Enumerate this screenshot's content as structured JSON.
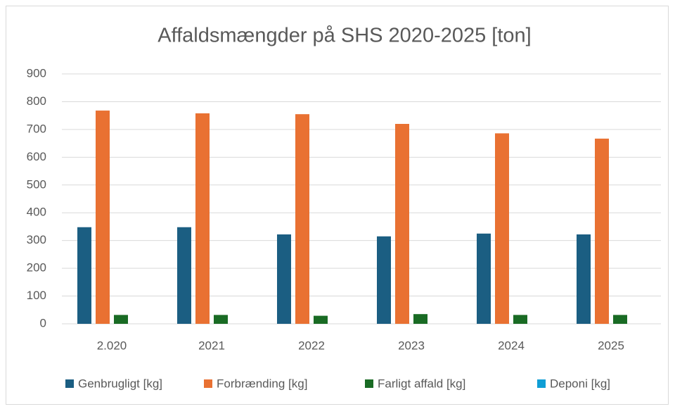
{
  "chart_data": {
    "type": "bar",
    "title": "Affaldsmængder på SHS 2020-2025  [ton]",
    "categories": [
      "2.020",
      "2021",
      "2022",
      "2023",
      "2024",
      "2025"
    ],
    "series": [
      {
        "name": "Genbrugligt [kg]",
        "color": "#1b5e82",
        "values": [
          348,
          348,
          322,
          315,
          325,
          322
        ]
      },
      {
        "name": "Forbrænding [kg]",
        "color": "#e97132",
        "values": [
          768,
          758,
          755,
          720,
          686,
          667
        ]
      },
      {
        "name": "Farligt affald [kg]",
        "color": "#196b24",
        "values": [
          32,
          32,
          29,
          35,
          32,
          32
        ]
      },
      {
        "name": "Deponi [kg]",
        "color": "#0f9ed5",
        "values": [
          0,
          0,
          0,
          0,
          0,
          0
        ]
      }
    ],
    "ylim": [
      0,
      900
    ],
    "yticks": [
      0,
      100,
      200,
      300,
      400,
      500,
      600,
      700,
      800,
      900
    ],
    "grid": true,
    "legend": "bottom"
  }
}
